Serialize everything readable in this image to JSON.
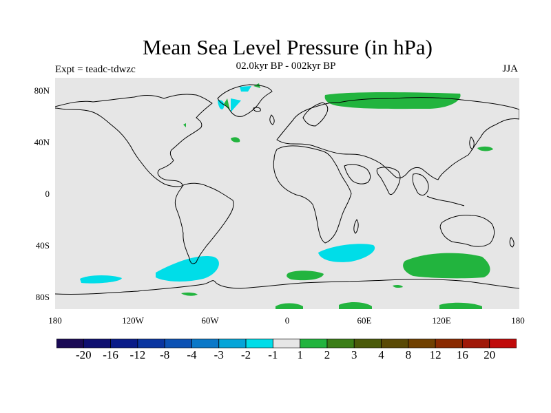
{
  "title": "Mean Sea Level Pressure (in hPa)",
  "subtitle": "02.0kyr BP - 002kyr BP",
  "experiment": "Expt = teadc-tdwzc",
  "season": "JJA",
  "colors": {
    "background": "#e6e6e6",
    "coast": "#000000",
    "negative_anomaly": "#00dde8",
    "positive_anomaly": "#22b43e"
  },
  "map": {
    "projection": "cylindrical-equidistant",
    "lon_range": [
      -180,
      180
    ],
    "lat_range": [
      -90,
      90
    ],
    "y_tick_labels": [
      "80N",
      "40N",
      "0",
      "40S",
      "80S"
    ],
    "y_tick_values": [
      80,
      40,
      0,
      -40,
      -80
    ],
    "x_tick_labels": [
      "180",
      "120W",
      "60W",
      "0",
      "60E",
      "120E",
      "180"
    ],
    "x_tick_values": [
      -180,
      -120,
      -60,
      0,
      60,
      120,
      180
    ]
  },
  "colorbar": {
    "colors": [
      "#1a0a55",
      "#0e0f70",
      "#0a1c88",
      "#0a35a0",
      "#0c52b4",
      "#0a78c8",
      "#05a5d8",
      "#00dde8",
      "#e6e6e6",
      "#22b43e",
      "#3b7e18",
      "#4a5a0a",
      "#5a4a05",
      "#704000",
      "#8a2a00",
      "#a01808",
      "#c00a0a"
    ],
    "labels": [
      "-20",
      "-16",
      "-12",
      "-8",
      "-4",
      "-3",
      "-2",
      "-1",
      "1",
      "2",
      "3",
      "4",
      "8",
      "12",
      "16",
      "20"
    ]
  }
}
